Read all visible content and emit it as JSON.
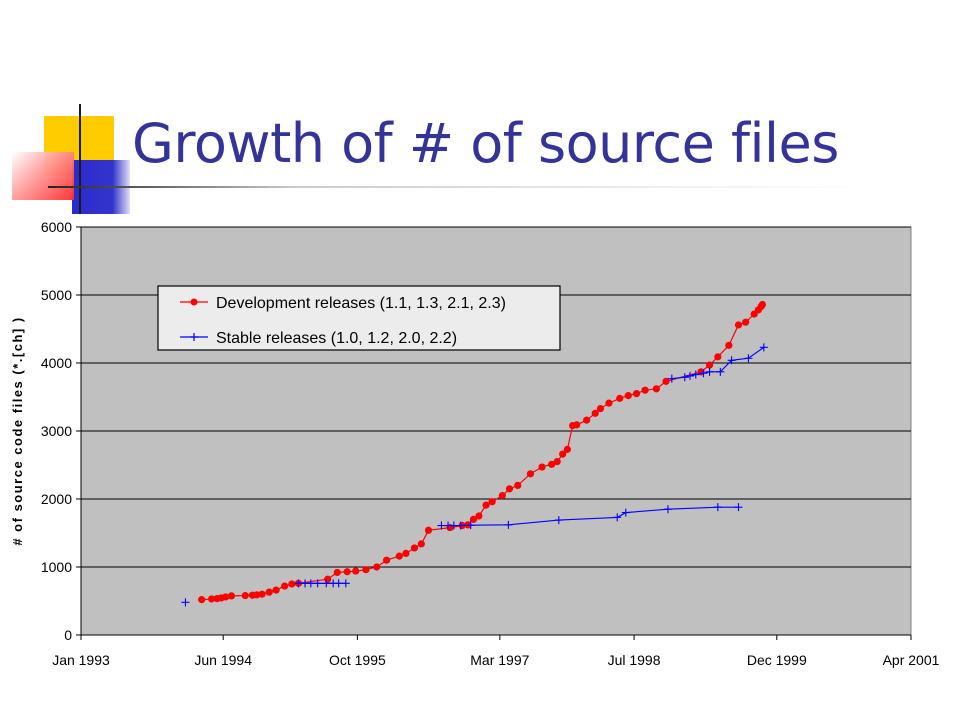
{
  "slide": {
    "title": "Growth of # of source files",
    "accent_colors": {
      "yellow": "#ffcc00",
      "blue": "#3333cc",
      "red": "#ff3333",
      "title": "#333399"
    }
  },
  "chart_data": {
    "type": "line",
    "title": "",
    "xlabel": "",
    "ylabel": "# of source code files (*.[ch] )",
    "x_type": "date",
    "xlim": [
      "1993-01-01",
      "2001-04-01"
    ],
    "xticks": [
      "Jan 1993",
      "Jun 1994",
      "Oct 1995",
      "Mar 1997",
      "Jul 1998",
      "Dec 1999",
      "Apr 2001"
    ],
    "xtick_dates": [
      "1993-01-01",
      "1994-06-01",
      "1995-10-01",
      "1997-03-01",
      "1998-07-01",
      "1999-12-01",
      "2001-04-01"
    ],
    "ylim": [
      0,
      6000
    ],
    "yticks": [
      0,
      1000,
      2000,
      3000,
      4000,
      5000,
      6000
    ],
    "grid": "horizontal",
    "plot_background": "#c0c0c0",
    "legend_position": "upper-left",
    "series": [
      {
        "name": "Development releases (1.1, 1.3, 2.1, 2.3)",
        "color": "#ff0000",
        "marker": "circle",
        "points": [
          [
            "1994-03-15",
            520
          ],
          [
            "1994-04-20",
            530
          ],
          [
            "1994-05-10",
            535
          ],
          [
            "1994-05-25",
            545
          ],
          [
            "1994-06-10",
            560
          ],
          [
            "1994-07-01",
            575
          ],
          [
            "1994-08-20",
            580
          ],
          [
            "1994-09-15",
            585
          ],
          [
            "1994-10-01",
            590
          ],
          [
            "1994-10-20",
            600
          ],
          [
            "1994-11-15",
            630
          ],
          [
            "1994-12-10",
            660
          ],
          [
            "1995-01-10",
            720
          ],
          [
            "1995-02-05",
            750
          ],
          [
            "1995-03-01",
            760
          ],
          [
            "1995-06-15",
            820
          ],
          [
            "1995-07-20",
            920
          ],
          [
            "1995-08-25",
            930
          ],
          [
            "1995-09-25",
            940
          ],
          [
            "1995-11-01",
            960
          ],
          [
            "1995-12-10",
            1000
          ],
          [
            "1996-01-15",
            1100
          ],
          [
            "1996-03-01",
            1160
          ],
          [
            "1996-03-25",
            1200
          ],
          [
            "1996-04-25",
            1280
          ],
          [
            "1996-05-20",
            1340
          ],
          [
            "1996-06-15",
            1540
          ],
          [
            "1996-09-01",
            1580
          ],
          [
            "1996-10-15",
            1610
          ],
          [
            "1996-11-05",
            1620
          ],
          [
            "1996-11-25",
            1700
          ],
          [
            "1996-12-15",
            1750
          ],
          [
            "1997-01-10",
            1910
          ],
          [
            "1997-02-01",
            1960
          ],
          [
            "1997-03-10",
            2050
          ],
          [
            "1997-04-05",
            2150
          ],
          [
            "1997-05-05",
            2200
          ],
          [
            "1997-06-20",
            2370
          ],
          [
            "1997-08-01",
            2470
          ],
          [
            "1997-09-05",
            2510
          ],
          [
            "1997-09-25",
            2550
          ],
          [
            "1997-10-15",
            2660
          ],
          [
            "1997-11-01",
            2730
          ],
          [
            "1997-11-20",
            3080
          ],
          [
            "1997-12-05",
            3090
          ],
          [
            "1998-01-10",
            3160
          ],
          [
            "1998-02-10",
            3260
          ],
          [
            "1998-03-01",
            3330
          ],
          [
            "1998-04-01",
            3410
          ],
          [
            "1998-05-10",
            3480
          ],
          [
            "1998-06-10",
            3520
          ],
          [
            "1998-07-10",
            3550
          ],
          [
            "1998-08-10",
            3600
          ],
          [
            "1998-09-20",
            3620
          ],
          [
            "1998-10-25",
            3730
          ],
          [
            "1999-03-01",
            3870
          ],
          [
            "1999-04-01",
            3970
          ],
          [
            "1999-05-01",
            4090
          ],
          [
            "1999-06-10",
            4260
          ],
          [
            "1999-07-15",
            4560
          ],
          [
            "1999-08-10",
            4600
          ],
          [
            "1999-09-10",
            4720
          ],
          [
            "1999-09-25",
            4780
          ],
          [
            "1999-10-05",
            4830
          ],
          [
            "1999-10-10",
            4860
          ]
        ]
      },
      {
        "name": "Stable releases (1.0, 1.2, 2.0, 2.2)",
        "color": "#0000ff",
        "marker": "plus",
        "segments": [
          [
            [
              "1994-01-15",
              480
            ]
          ],
          [
            [
              "1995-03-01",
              760
            ],
            [
              "1995-03-25",
              760
            ],
            [
              "1995-04-15",
              760
            ],
            [
              "1995-05-10",
              760
            ],
            [
              "1995-06-10",
              760
            ],
            [
              "1995-07-05",
              760
            ],
            [
              "1995-07-25",
              760
            ],
            [
              "1995-08-20",
              760
            ]
          ],
          [
            [
              "1996-08-01",
              1610
            ],
            [
              "1996-08-25",
              1610
            ],
            [
              "1996-09-15",
              1610
            ],
            [
              "1996-10-10",
              1610
            ],
            [
              "1996-11-15",
              1615
            ],
            [
              "1997-04-01",
              1620
            ],
            [
              "1997-10-01",
              1690
            ],
            [
              "1998-05-01",
              1730
            ],
            [
              "1998-06-01",
              1800
            ],
            [
              "1998-11-01",
              1850
            ],
            [
              "1999-05-01",
              1880
            ],
            [
              "1999-07-15",
              1880
            ]
          ],
          [
            [
              "1998-11-15",
              3770
            ],
            [
              "1999-01-01",
              3790
            ],
            [
              "1999-01-20",
              3810
            ],
            [
              "1999-02-10",
              3830
            ],
            [
              "1999-03-10",
              3850
            ],
            [
              "1999-04-01",
              3870
            ],
            [
              "1999-05-10",
              3870
            ],
            [
              "1999-06-20",
              4040
            ],
            [
              "1999-08-20",
              4070
            ],
            [
              "1999-10-15",
              4230
            ]
          ]
        ]
      }
    ]
  }
}
